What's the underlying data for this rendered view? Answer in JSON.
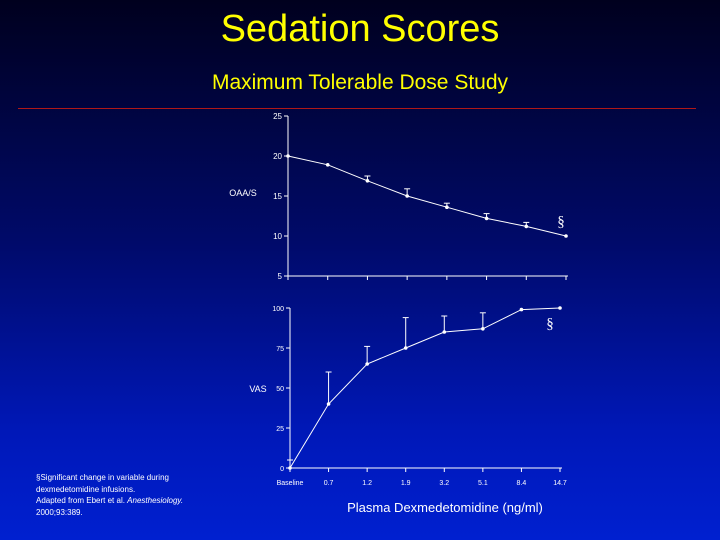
{
  "title": "Sedation Scores",
  "subtitle": "Maximum Tolerable Dose Study",
  "xaxis_title": "Plasma Dexmedetomidine (ng/ml)",
  "footnote": {
    "line1": "§Significant change in variable during",
    "line2": "dexmedetomidine infusions.",
    "line3_prefix": "Adapted from Ebert et al. ",
    "line3_journal": "Anesthesiology.",
    "line4": "2000;93:389."
  },
  "colors": {
    "title": "#ffff00",
    "rule": "#b01818",
    "chart_line": "#ffffff",
    "background_top": "#00001e",
    "background_bottom": "#0020d0"
  },
  "chart_data": [
    {
      "type": "line",
      "title": "",
      "ylabel": "OAA/S",
      "xlabel": "",
      "ylim": [
        5,
        25
      ],
      "yticks": [
        25,
        20,
        15,
        10,
        5
      ],
      "grid": false,
      "categories": [
        "Baseline",
        "0.7",
        "1.2",
        "1.9",
        "3.2",
        "5.1",
        "8.4",
        "14.7"
      ],
      "x_tick_labels_shown": false,
      "series": [
        {
          "values": [
            20.0,
            18.9,
            16.9,
            15.0,
            13.6,
            12.2,
            11.2,
            10.0
          ],
          "error_upper": [
            0.0,
            0.0,
            0.6,
            0.9,
            0.5,
            0.6,
            0.5,
            0.0
          ]
        }
      ],
      "annotation": "§"
    },
    {
      "type": "line",
      "title": "",
      "ylabel": "VAS",
      "xlabel": "Plasma Dexmedetomidine (ng/ml)",
      "ylim": [
        0,
        100
      ],
      "yticks": [
        100,
        75,
        50,
        25,
        0
      ],
      "grid": false,
      "categories": [
        "Baseline",
        "0.7",
        "1.2",
        "1.9",
        "3.2",
        "5.1",
        "8.4",
        "14.7"
      ],
      "x_tick_labels_shown": true,
      "series": [
        {
          "values": [
            0,
            40,
            65,
            75,
            85,
            87,
            99,
            100
          ],
          "error_upper": [
            5,
            20,
            11,
            19,
            10,
            10,
            0,
            0
          ]
        }
      ],
      "annotation": "§"
    }
  ]
}
